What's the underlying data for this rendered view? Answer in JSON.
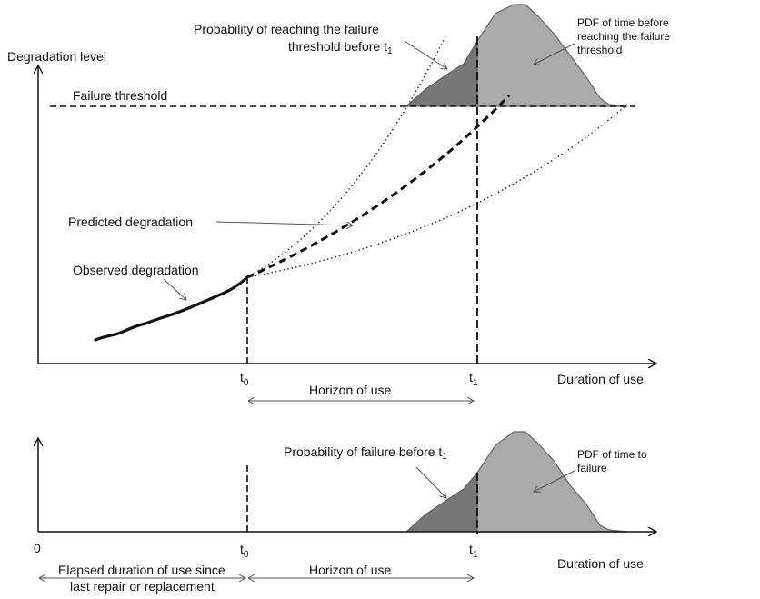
{
  "top": {
    "y_axis_label": "Degradation level",
    "failure_threshold_label": "Failure threshold",
    "prob_reaching_label_line1": "Probability of reaching the failure",
    "prob_reaching_label_line2": "threshold before t",
    "prob_reaching_label_sub": "1",
    "pdf_label_line1": "PDF of time before",
    "pdf_label_line2": "reaching the failure",
    "pdf_label_line3": "threshold",
    "predicted_label": "Predicted degradation",
    "observed_label": "Observed degradation",
    "t0_base": "t",
    "t0_sub": "0",
    "t1_base": "t",
    "t1_sub": "1",
    "x_axis_label": "Duration of use",
    "horizon_label": "Horizon of use"
  },
  "bottom": {
    "prob_failure_label": "Probability of failure before t",
    "prob_failure_sub": "1",
    "pdf_label_line1": "PDF of time to",
    "pdf_label_line2": "failure",
    "origin_label": "0",
    "t0_base": "t",
    "t0_sub": "0",
    "t1_base": "t",
    "t1_sub": "1",
    "x_axis_label": "Duration of use",
    "elapsed_label_line1": "Elapsed duration of use since",
    "elapsed_label_line2": "last repair or replacement",
    "horizon_label": "Horizon of use"
  },
  "colors": {
    "light_fill": "#aaaaaa",
    "dark_fill": "#777777",
    "outline": "#666666",
    "line": "#111111"
  }
}
